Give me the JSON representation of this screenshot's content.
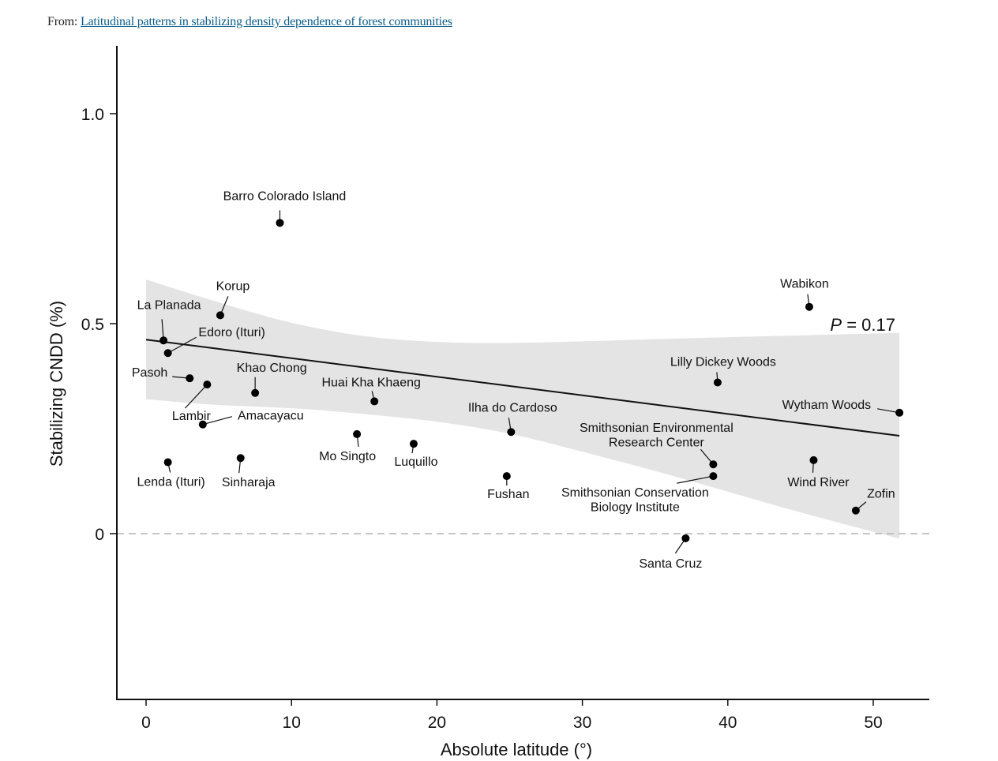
{
  "header": {
    "from_prefix": "From:",
    "article_link": "Latitudinal patterns in stabilizing density dependence of forest communities"
  },
  "chart_data": {
    "type": "scatter",
    "title": "",
    "xlabel": "Absolute latitude (°)",
    "ylabel": "Stabilizing CNDD (%)",
    "xlim": [
      -2,
      54
    ],
    "ylim": [
      -0.4,
      1.16
    ],
    "x_ticks": [
      0,
      10,
      20,
      30,
      40,
      50
    ],
    "x_tick_labels": [
      "0",
      "10",
      "20",
      "30",
      "40",
      "50"
    ],
    "y_ticks": [
      0,
      0.5,
      1.0
    ],
    "y_tick_labels": [
      "0",
      "0.5",
      "1.0"
    ],
    "grid": false,
    "reference_line": {
      "y": 0,
      "style": "dashed"
    },
    "annotation": {
      "italic": "P",
      "text": " = 0.17",
      "position": "top-right of ribbon"
    },
    "regression": {
      "x": [
        0,
        51.8
      ],
      "y": [
        0.462,
        0.233
      ],
      "ci_upper": [
        [
          0,
          0.605
        ],
        [
          5,
          0.55
        ],
        [
          10,
          0.5
        ],
        [
          15,
          0.468
        ],
        [
          20,
          0.455
        ],
        [
          25,
          0.453
        ],
        [
          30,
          0.458
        ],
        [
          35,
          0.463
        ],
        [
          40,
          0.468
        ],
        [
          45,
          0.472
        ],
        [
          51.8,
          0.478
        ]
      ],
      "ci_lower": [
        [
          0,
          0.32
        ],
        [
          5,
          0.305
        ],
        [
          10,
          0.3
        ],
        [
          15,
          0.285
        ],
        [
          20,
          0.268
        ],
        [
          25,
          0.24
        ],
        [
          30,
          0.195
        ],
        [
          35,
          0.15
        ],
        [
          40,
          0.1
        ],
        [
          45,
          0.05
        ],
        [
          51.8,
          -0.012
        ]
      ]
    },
    "points": [
      {
        "name": "La Planada",
        "x": 1.2,
        "y": 0.46
      },
      {
        "name": "Edoro (Ituri)",
        "x": 1.5,
        "y": 0.43
      },
      {
        "name": "Korup",
        "x": 5.1,
        "y": 0.52
      },
      {
        "name": "Barro Colorado Island",
        "x": 9.2,
        "y": 0.74
      },
      {
        "name": "Pasoh",
        "x": 3.0,
        "y": 0.37
      },
      {
        "name": "Lambir",
        "x": 4.2,
        "y": 0.355
      },
      {
        "name": "Khao Chong",
        "x": 7.5,
        "y": 0.335
      },
      {
        "name": "Amacayacu",
        "x": 3.9,
        "y": 0.26
      },
      {
        "name": "Lenda (Ituri)",
        "x": 1.5,
        "y": 0.17
      },
      {
        "name": "Sinharaja",
        "x": 6.5,
        "y": 0.18
      },
      {
        "name": "Huai Kha Khaeng",
        "x": 15.7,
        "y": 0.315
      },
      {
        "name": "Mo Singto",
        "x": 14.5,
        "y": 0.237
      },
      {
        "name": "Luquillo",
        "x": 18.4,
        "y": 0.214
      },
      {
        "name": "Ilha do Cardoso",
        "x": 25.1,
        "y": 0.242
      },
      {
        "name": "Fushan",
        "x": 24.8,
        "y": 0.137
      },
      {
        "name": "Smithsonian Environmental Research Center",
        "label_lines": [
          "Smithsonian Environmental",
          "Research Center"
        ],
        "x": 39.0,
        "y": 0.165
      },
      {
        "name": "Smithsonian Conservation Biology Institute",
        "label_lines": [
          "Smithsonian Conservation",
          "Biology Institute"
        ],
        "x": 39.0,
        "y": 0.137
      },
      {
        "name": "Santa Cruz",
        "x": 37.1,
        "y": -0.011
      },
      {
        "name": "Lilly Dickey Woods",
        "x": 39.3,
        "y": 0.36
      },
      {
        "name": "Wabikon",
        "x": 45.6,
        "y": 0.54
      },
      {
        "name": "Wytham Woods",
        "x": 51.8,
        "y": 0.288
      },
      {
        "name": "Wind River",
        "x": 45.9,
        "y": 0.175
      },
      {
        "name": "Zofin",
        "x": 48.8,
        "y": 0.055
      }
    ]
  }
}
